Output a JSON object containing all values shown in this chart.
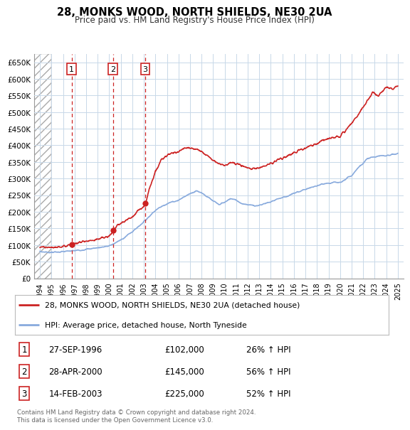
{
  "title": "28, MONKS WOOD, NORTH SHIELDS, NE30 2UA",
  "subtitle": "Price paid vs. HM Land Registry's House Price Index (HPI)",
  "xlim": [
    1993.5,
    2025.5
  ],
  "ylim": [
    0,
    675000
  ],
  "yticks": [
    0,
    50000,
    100000,
    150000,
    200000,
    250000,
    300000,
    350000,
    400000,
    450000,
    500000,
    550000,
    600000,
    650000
  ],
  "ytick_labels": [
    "£0",
    "£50K",
    "£100K",
    "£150K",
    "£200K",
    "£250K",
    "£300K",
    "£350K",
    "£400K",
    "£450K",
    "£500K",
    "£550K",
    "£600K",
    "£650K"
  ],
  "xticks": [
    1994,
    1995,
    1996,
    1997,
    1998,
    1999,
    2000,
    2001,
    2002,
    2003,
    2004,
    2005,
    2006,
    2007,
    2008,
    2009,
    2010,
    2011,
    2012,
    2013,
    2014,
    2015,
    2016,
    2017,
    2018,
    2019,
    2020,
    2021,
    2022,
    2023,
    2024,
    2025
  ],
  "property_color": "#cc2222",
  "hpi_color": "#88aadd",
  "transaction_color": "#cc2222",
  "vline_color": "#cc2222",
  "transactions": [
    {
      "num": 1,
      "year": 1996.74,
      "price": 102000,
      "label": "27-SEP-1996",
      "price_str": "£102,000",
      "hpi_str": "26% ↑ HPI"
    },
    {
      "num": 2,
      "year": 2000.33,
      "price": 145000,
      "label": "28-APR-2000",
      "price_str": "£145,000",
      "hpi_str": "56% ↑ HPI"
    },
    {
      "num": 3,
      "year": 2003.12,
      "price": 225000,
      "label": "14-FEB-2003",
      "price_str": "£225,000",
      "hpi_str": "52% ↑ HPI"
    }
  ],
  "legend_property": "28, MONKS WOOD, NORTH SHIELDS, NE30 2UA (detached house)",
  "legend_hpi": "HPI: Average price, detached house, North Tyneside",
  "footer": "Contains HM Land Registry data © Crown copyright and database right 2024.\nThis data is licensed under the Open Government Licence v3.0.",
  "background_color": "#ffffff",
  "grid_color": "#c8d8e8"
}
